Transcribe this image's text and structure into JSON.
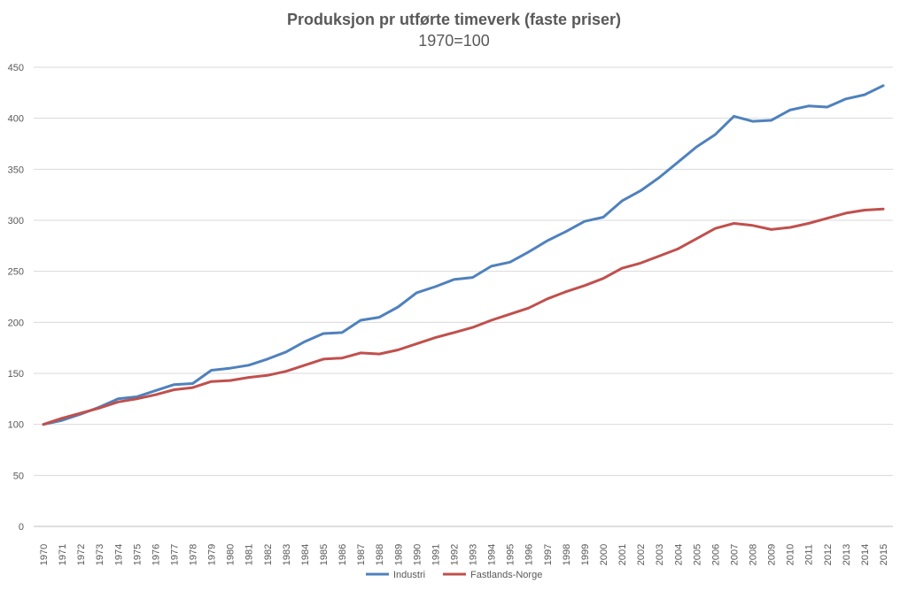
{
  "chart_data": {
    "type": "line",
    "title": "Produksjon pr utførte timeverk (faste priser)",
    "subtitle": "1970=100",
    "xlabel": "",
    "ylabel": "",
    "ylim": [
      0,
      450
    ],
    "yticks": [
      0,
      50,
      100,
      150,
      200,
      250,
      300,
      350,
      400,
      450
    ],
    "grid": true,
    "legend_position": "bottom",
    "categories": [
      "1970",
      "1971",
      "1972",
      "1973",
      "1974",
      "1975",
      "1976",
      "1977",
      "1978",
      "1979",
      "1980",
      "1981",
      "1982",
      "1983",
      "1984",
      "1985",
      "1986",
      "1987",
      "1988",
      "1989",
      "1990",
      "1991",
      "1992",
      "1993",
      "1994",
      "1995",
      "1996",
      "1997",
      "1998",
      "1999",
      "2000",
      "2001",
      "2002",
      "2003",
      "2004",
      "2005",
      "2006",
      "2007",
      "2008",
      "2009",
      "2010",
      "2011",
      "2012",
      "2013",
      "2014",
      "2015"
    ],
    "series": [
      {
        "name": "Industri",
        "color": "#4f81bd",
        "values": [
          100,
          104,
          110,
          117,
          125,
          127,
          133,
          139,
          140,
          153,
          155,
          158,
          164,
          171,
          181,
          189,
          190,
          202,
          205,
          215,
          229,
          235,
          242,
          244,
          255,
          259,
          269,
          280,
          289,
          299,
          303,
          319,
          329,
          342,
          357,
          372,
          384,
          402,
          397,
          398,
          408,
          412,
          411,
          419,
          423,
          432
        ]
      },
      {
        "name": "Fastlands-Norge",
        "color": "#c0504d",
        "values": [
          100,
          106,
          111,
          116,
          122,
          125,
          129,
          134,
          136,
          142,
          143,
          146,
          148,
          152,
          158,
          164,
          165,
          170,
          169,
          173,
          179,
          185,
          190,
          195,
          202,
          208,
          214,
          223,
          230,
          236,
          243,
          253,
          258,
          265,
          272,
          282,
          292,
          297,
          295,
          291,
          293,
          297,
          302,
          307,
          310,
          311
        ]
      }
    ]
  }
}
